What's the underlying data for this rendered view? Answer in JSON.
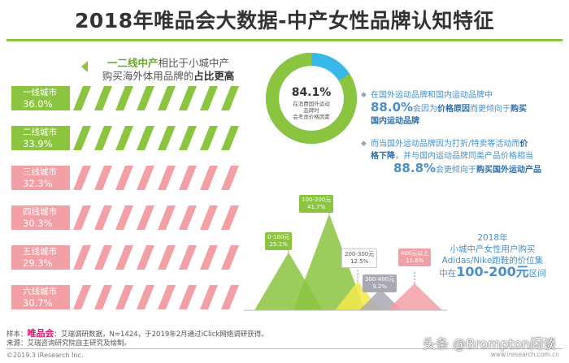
{
  "title": "2018年唯品会大数据-中产女性品牌认知特征",
  "headline": {
    "part1": "一二线中产",
    "part2": "相比于小城中产",
    "part3": "购买海外体用品牌的",
    "part4": "占比更高"
  },
  "cities": [
    {
      "label": "一线城市",
      "value": "36.0%",
      "color": "#8bc43f"
    },
    {
      "label": "二线城市",
      "value": "33.9%",
      "color": "#8bc43f"
    },
    {
      "label": "三线城市",
      "value": "32.3%",
      "color": "#f2a0a6"
    },
    {
      "label": "四线城市",
      "value": "30.3%",
      "color": "#f2a0a6"
    },
    {
      "label": "五线城市",
      "value": "29.3%",
      "color": "#f2a0a6"
    },
    {
      "label": "六线城市",
      "value": "30.7%",
      "color": "#f2a0a6"
    }
  ],
  "donut": {
    "pct": "84.1%",
    "desc1": "在消费国外运动",
    "desc2": "品牌时",
    "desc3": "会考虑价格因素",
    "fraction": 0.841,
    "main_color": "#8bc43f",
    "rest_color": "#38b8e8"
  },
  "note1": {
    "l1": "在国外运动品牌和国内运动品牌中",
    "big": "88.0%",
    "mid1": "会因为",
    "bold1": "价格原因",
    "mid2": "而更倾向于",
    "bold2": "购买",
    "l3": "国内运动品牌"
  },
  "note2": {
    "l1a": "而当国外运动品牌因为打折/特卖等活动而",
    "bold1": "价",
    "bold2": "格下降",
    "l2": "，并与国内运动品牌同类产品价格相当",
    "big": "88.8%",
    "mid": "会更倾向于",
    "bold3": "购买国外运动产品"
  },
  "chart_data": {
    "type": "area",
    "title": "2018年小城中产女性用户购买Adidas/Nike跑鞋的价位集中在100-200元区间",
    "categories": [
      "0-100元",
      "100-200元",
      "200-300元",
      "300-400元",
      "400元以上"
    ],
    "values": [
      25.1,
      41.7,
      12.5,
      9.2,
      11.6
    ],
    "value_labels": [
      "25.1%",
      "41.7%",
      "12.5%",
      "9.2%",
      "11.6%"
    ],
    "colors": [
      "#8bc43f",
      "#8bc43f",
      "#f5e84a",
      "#a9a9b5",
      "#f2a0a6"
    ]
  },
  "summary": {
    "l1": "2018年",
    "l2": "小城中产女性用户购买",
    "l3": "Adidas/Nike跑鞋的价位集",
    "l4a": "中在",
    "big": "100-200元",
    "l4b": "区间"
  },
  "footer": {
    "l1a": "样本：",
    "brand": "唯品会",
    "l1b": "：艾瑞调研数据，N=1424，于2019年2月通过iClick网络调研获得。",
    "l2": "来源：艾瑞咨询研究院自主研究及绘制。",
    "copyright": "©2019.3 iResearch Inc.",
    "site": "www.iresearch.com.cn",
    "watermark": "头条 @Brompton闲谈"
  }
}
